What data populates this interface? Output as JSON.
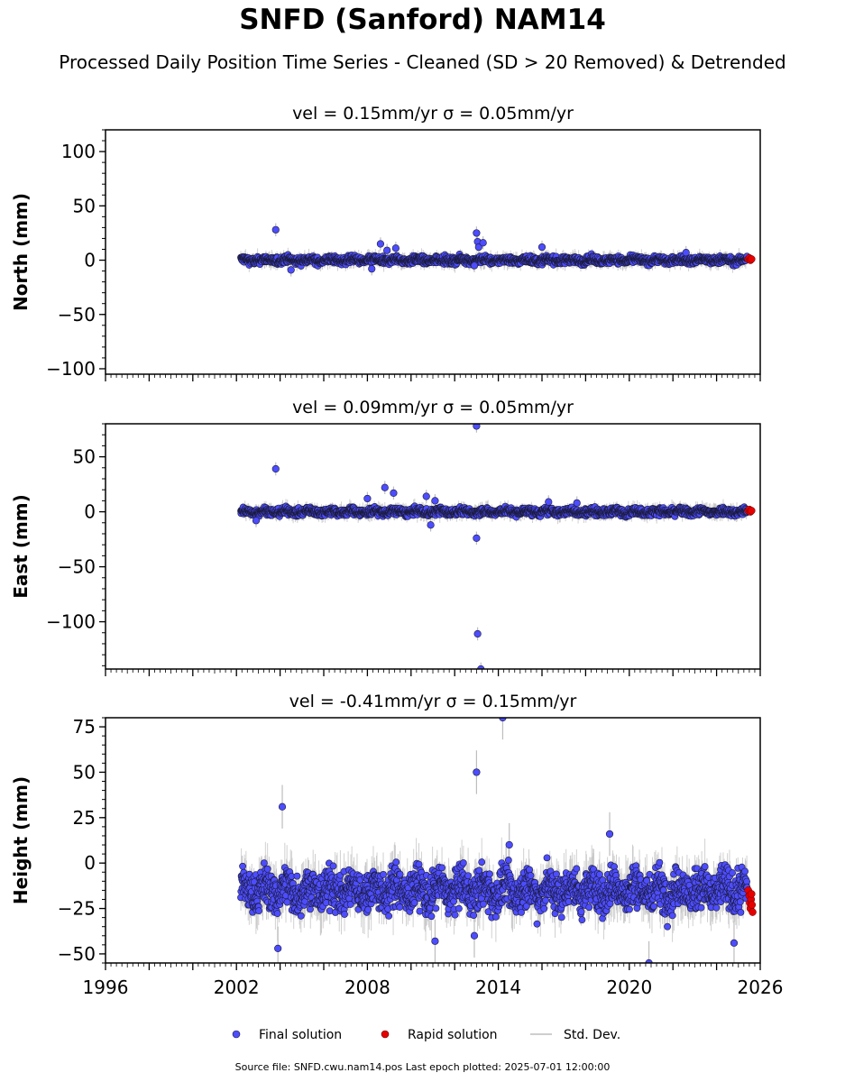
{
  "figure": {
    "title": "SNFD (Sanford) NAM14",
    "subtitle": "Processed Daily Position Time Series - Cleaned (SD > 20 Removed) & Detrended",
    "footer": "Source file: SNFD.cwu.nam14.pos  Last epoch plotted: 2025-07-01 12:00:00"
  },
  "colors": {
    "final": "#4d4dff",
    "final_edge": "#1a1a3a",
    "rapid": "#e60000",
    "std": "#bdbdbd",
    "axis": "#000000"
  },
  "legend": {
    "placement": "bottom-center",
    "items": [
      {
        "label": "Final solution",
        "marker": "dot",
        "color": "#4d4dff"
      },
      {
        "label": "Rapid solution",
        "marker": "dot",
        "color": "#e60000"
      },
      {
        "label": "Std. Dev.",
        "marker": "line",
        "color": "#bdbdbd"
      }
    ]
  },
  "chart_data": [
    {
      "type": "scatter",
      "title": "vel = 0.15mm/yr   σ = 0.05mm/yr",
      "ylabel": "North (mm)",
      "xlabel": "",
      "xlim": [
        1996,
        2026
      ],
      "ylim": [
        -105,
        120
      ],
      "yticks": [
        100,
        50,
        0,
        -50,
        -100
      ],
      "yticklabels": [
        "100",
        "50",
        "0",
        "−50",
        "−100"
      ],
      "xticks": [],
      "xticklabels": [],
      "band": {
        "x_start": 2002.2,
        "x_end": 2025.4,
        "center": 0,
        "spread": 3
      },
      "std_dev_typical": 6,
      "outliers": [
        [
          2003.8,
          28
        ],
        [
          2008.6,
          15
        ],
        [
          2008.9,
          9
        ],
        [
          2009.3,
          11
        ],
        [
          2013.0,
          25
        ],
        [
          2013.05,
          17
        ],
        [
          2013.1,
          12
        ],
        [
          2013.3,
          16
        ],
        [
          2016.0,
          12
        ],
        [
          2022.6,
          7
        ],
        [
          2004.5,
          -9
        ],
        [
          2008.2,
          -8
        ],
        [
          2012.9,
          -5
        ]
      ],
      "rapid": {
        "x": [
          2025.45,
          2025.5,
          2025.55,
          2025.6
        ],
        "y": [
          1,
          2,
          0,
          1
        ]
      }
    },
    {
      "type": "scatter",
      "title": "vel = 0.09mm/yr   σ = 0.05mm/yr",
      "ylabel": "East (mm)",
      "xlabel": "",
      "xlim": [
        1996,
        2026
      ],
      "ylim": [
        -143,
        80
      ],
      "yticks": [
        50,
        0,
        -50,
        -100
      ],
      "yticklabels": [
        "50",
        "0",
        "−50",
        "−100"
      ],
      "xticks": [],
      "xticklabels": [],
      "band": {
        "x_start": 2002.2,
        "x_end": 2025.4,
        "center": 0,
        "spread": 3
      },
      "std_dev_typical": 6,
      "outliers": [
        [
          2003.8,
          39
        ],
        [
          2008.0,
          12
        ],
        [
          2008.8,
          22
        ],
        [
          2009.2,
          17
        ],
        [
          2010.7,
          14
        ],
        [
          2011.1,
          10
        ],
        [
          2013.0,
          78
        ],
        [
          2013.0,
          -24
        ],
        [
          2013.05,
          -111
        ],
        [
          2013.2,
          -143
        ],
        [
          2002.9,
          -8
        ],
        [
          2010.9,
          -12
        ],
        [
          2016.3,
          9
        ],
        [
          2017.6,
          8
        ]
      ],
      "rapid": {
        "x": [
          2025.45,
          2025.5,
          2025.55,
          2025.6
        ],
        "y": [
          1,
          2,
          0,
          1
        ]
      }
    },
    {
      "type": "scatter",
      "title": "vel = -0.41mm/yr   σ = 0.15mm/yr",
      "ylabel": "Height (mm)",
      "xlabel": "",
      "xlim": [
        1996,
        2026
      ],
      "ylim": [
        -55,
        80
      ],
      "yticks": [
        75,
        50,
        25,
        0,
        -25,
        -50
      ],
      "yticklabels": [
        "75",
        "50",
        "25",
        "0",
        "−25",
        "−50"
      ],
      "xticks": [
        1996,
        2002,
        2008,
        2014,
        2020,
        2026
      ],
      "xticklabels": [
        "1996",
        "2002",
        "2008",
        "2014",
        "2020",
        "2026"
      ],
      "band": {
        "x_start": 2002.2,
        "x_end": 2025.4,
        "center": -15,
        "spread": 10
      },
      "std_dev_typical": 12,
      "outliers": [
        [
          2004.1,
          31
        ],
        [
          2013.0,
          50
        ],
        [
          2014.2,
          80
        ],
        [
          2003.9,
          -47
        ],
        [
          2011.1,
          -43
        ],
        [
          2019.1,
          16
        ],
        [
          2020.9,
          -55
        ],
        [
          2024.8,
          -44
        ],
        [
          2012.9,
          -40
        ],
        [
          2014.5,
          10
        ]
      ],
      "rapid": {
        "x": [
          2025.45,
          2025.5,
          2025.52,
          2025.55,
          2025.58,
          2025.6,
          2025.62,
          2025.65
        ],
        "y": [
          -15,
          -18,
          -22,
          -25,
          -20,
          -17,
          -23,
          -27
        ]
      }
    }
  ]
}
